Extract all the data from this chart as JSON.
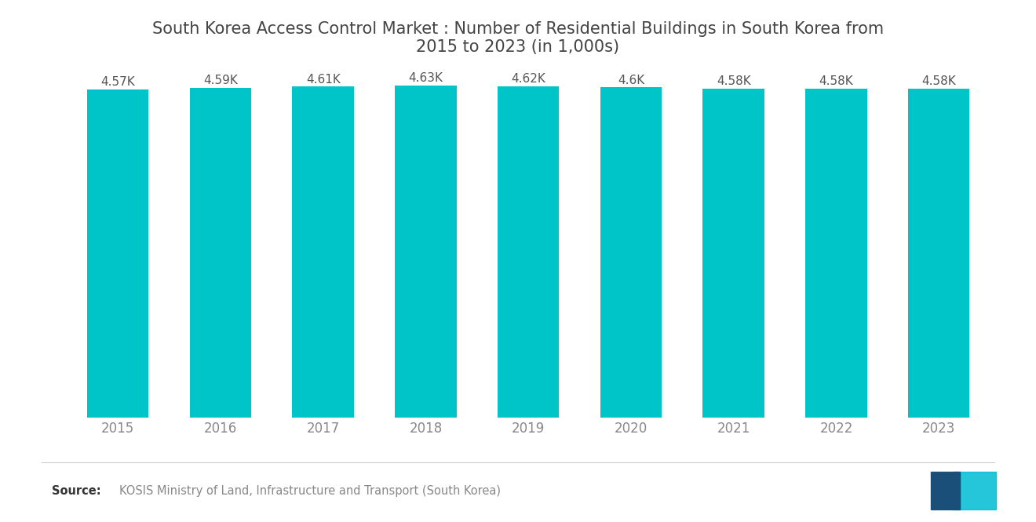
{
  "title": "South Korea Access Control Market : Number of Residential Buildings in South Korea from\n2015 to 2023 (in 1,000s)",
  "years": [
    "2015",
    "2016",
    "2017",
    "2018",
    "2019",
    "2020",
    "2021",
    "2022",
    "2023"
  ],
  "values": [
    4.57,
    4.59,
    4.61,
    4.63,
    4.62,
    4.6,
    4.58,
    4.58,
    4.58
  ],
  "labels": [
    "4.57K",
    "4.59K",
    "4.61K",
    "4.63K",
    "4.62K",
    "4.6K",
    "4.58K",
    "4.58K",
    "4.58K"
  ],
  "bar_color": "#00C5C8",
  "background_color": "#ffffff",
  "title_color": "#444444",
  "label_color": "#555555",
  "tick_color": "#888888",
  "source_text": "KOSIS Ministry of Land, Infrastructure and Transport (South Korea)",
  "source_label": "Source:",
  "ylim_min": 0,
  "ylim_max": 4.8,
  "title_fontsize": 15,
  "label_fontsize": 11,
  "tick_fontsize": 12
}
